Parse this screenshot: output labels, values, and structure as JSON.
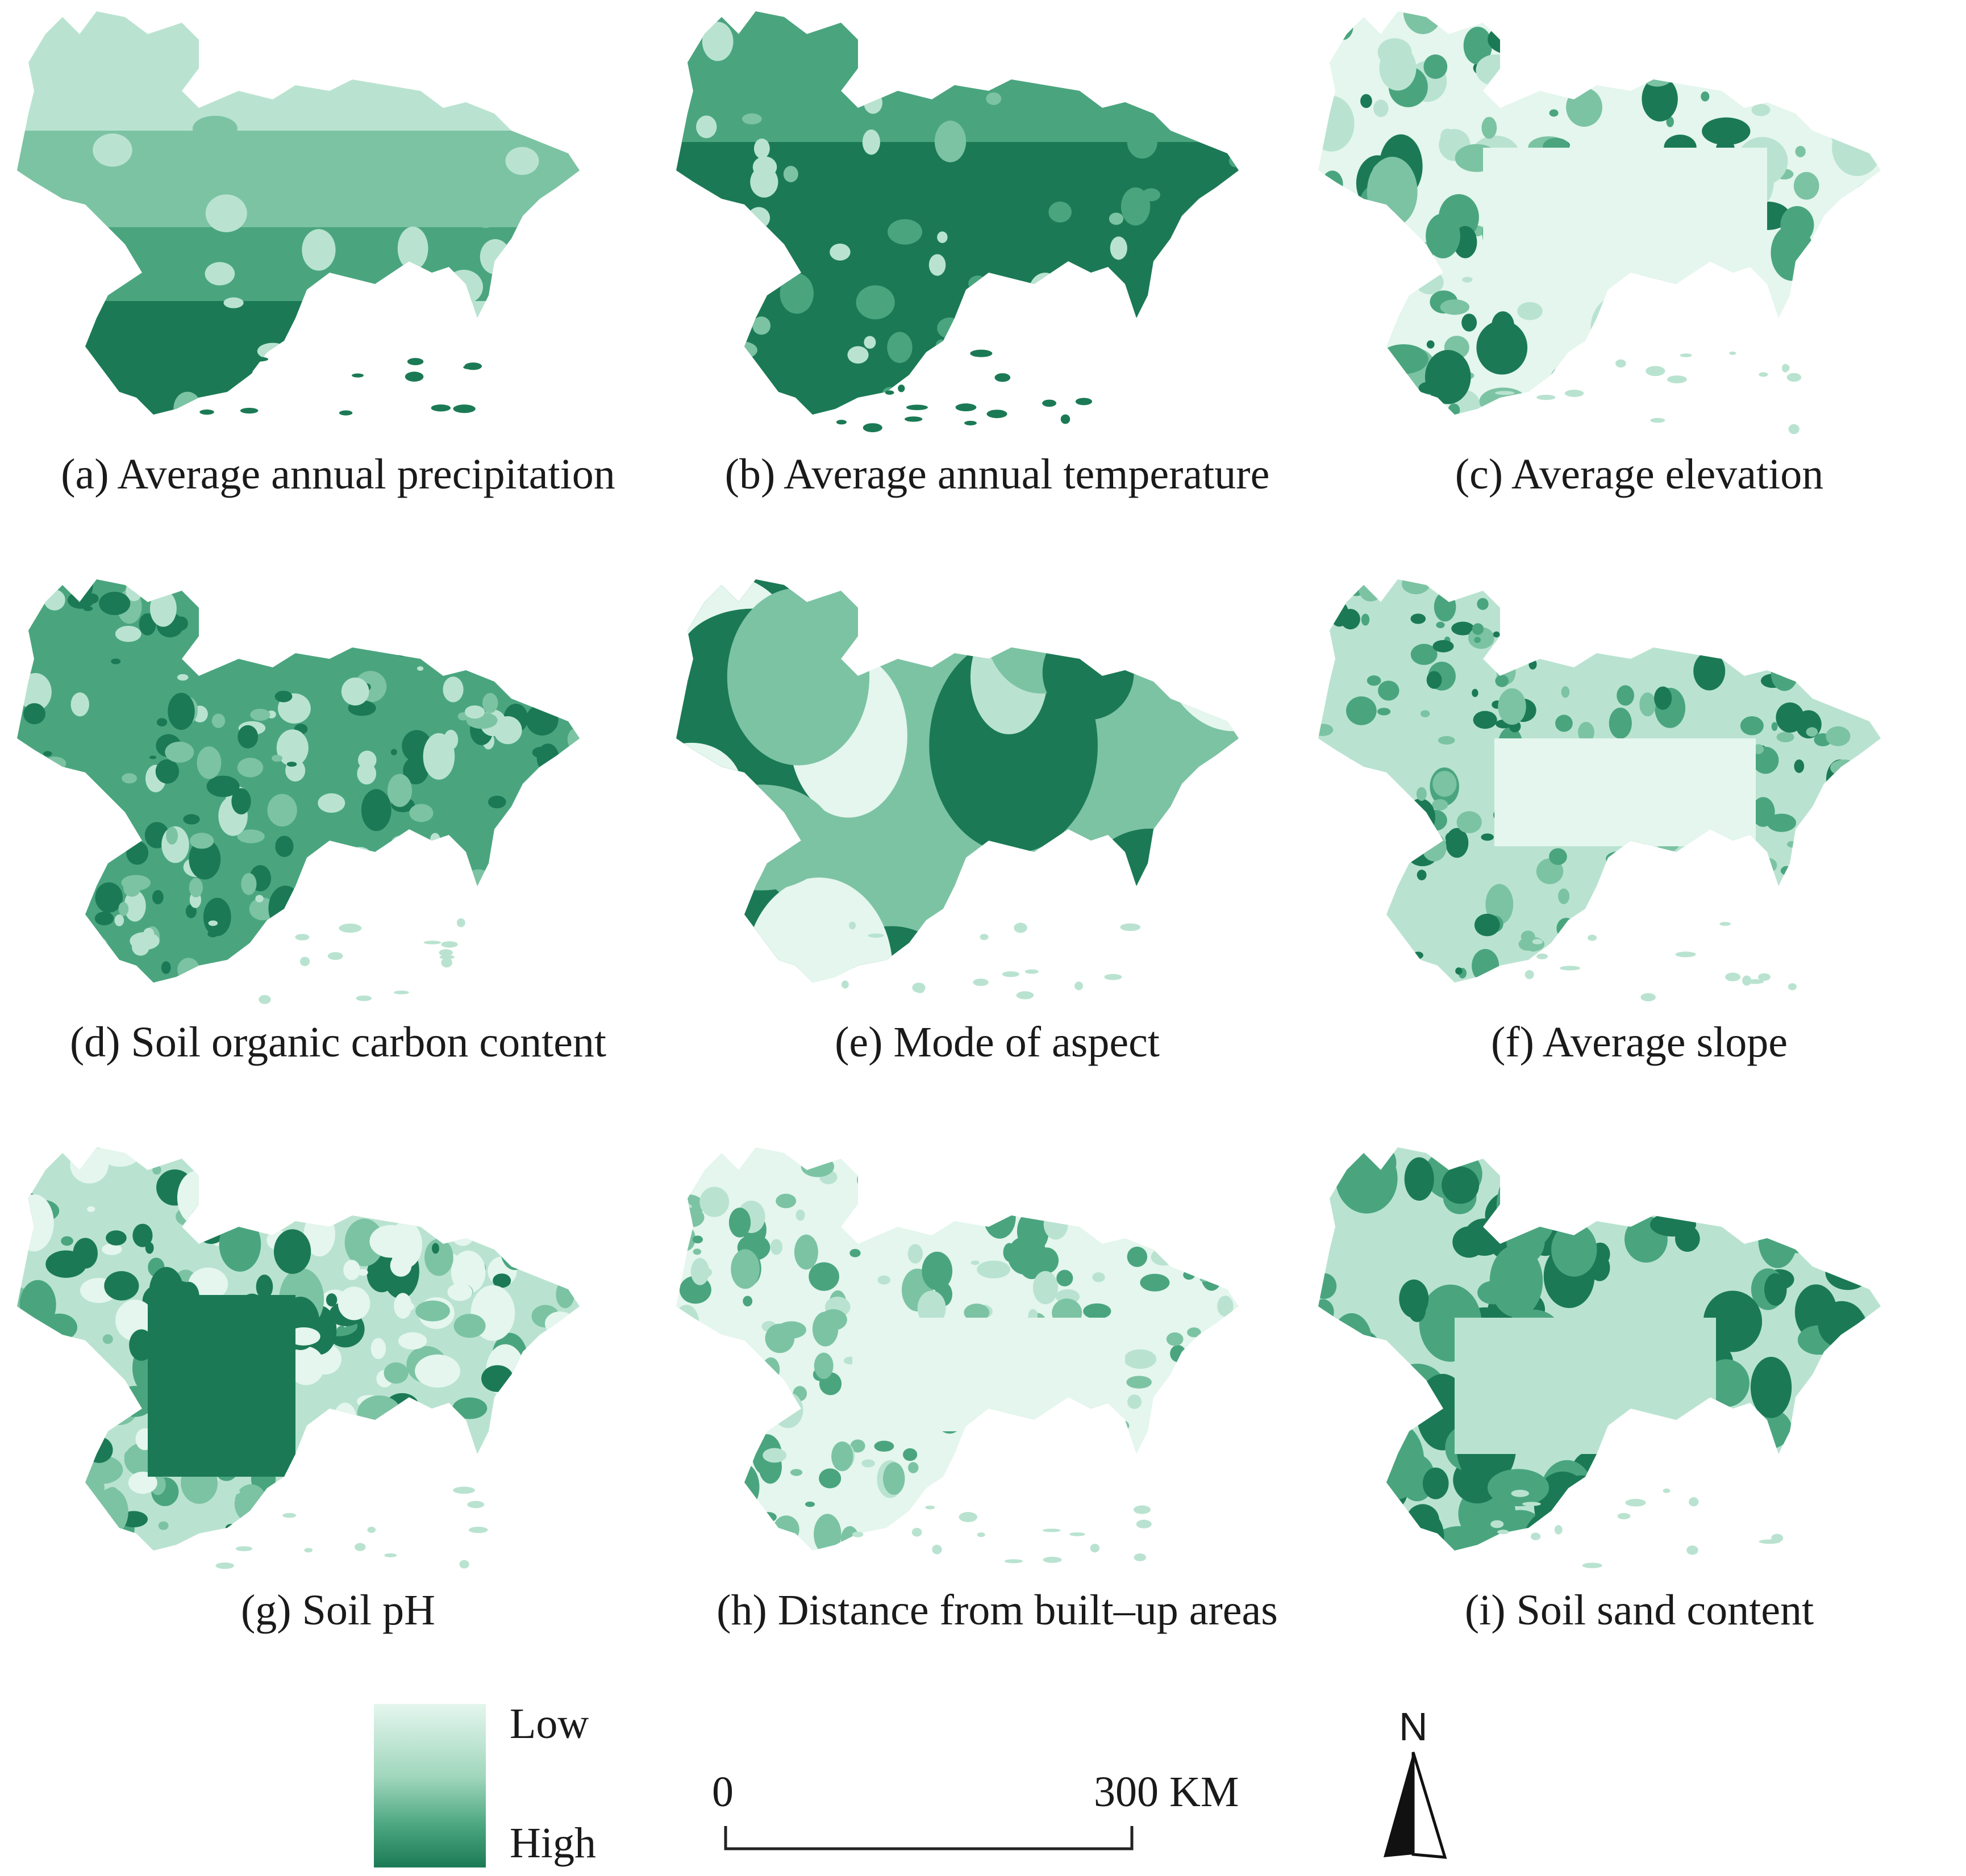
{
  "colors": {
    "low": "#e4f6ee",
    "light": "#b9e3d0",
    "mid": "#7cc3a3",
    "midDark": "#4aa57f",
    "high": "#1b7a55",
    "accent_dark": "#0f6b47"
  },
  "panels": [
    {
      "id": "a",
      "caption": "(a) Average annual precipitation",
      "pattern": "precip"
    },
    {
      "id": "b",
      "caption": "(b) Average annual temperature",
      "pattern": "temp"
    },
    {
      "id": "c",
      "caption": "(c) Average elevation",
      "pattern": "elev"
    },
    {
      "id": "d",
      "caption": "(d) Soil organic carbon content",
      "pattern": "soc"
    },
    {
      "id": "e",
      "caption": "(e) Mode of aspect",
      "pattern": "aspect"
    },
    {
      "id": "f",
      "caption": "(f) Average slope",
      "pattern": "slope"
    },
    {
      "id": "g",
      "caption": "(g) Soil pH",
      "pattern": "ph"
    },
    {
      "id": "h",
      "caption": "(h) Distance from built–up areas",
      "pattern": "dist"
    },
    {
      "id": "i",
      "caption": "(i) Soil sand content",
      "pattern": "sand"
    }
  ],
  "legend": {
    "low": "Low",
    "high": "High"
  },
  "scale_bar": {
    "start": "0",
    "end": "300 KM"
  },
  "north_arrow": {
    "label": "N",
    "icon": "north-arrow-icon"
  }
}
